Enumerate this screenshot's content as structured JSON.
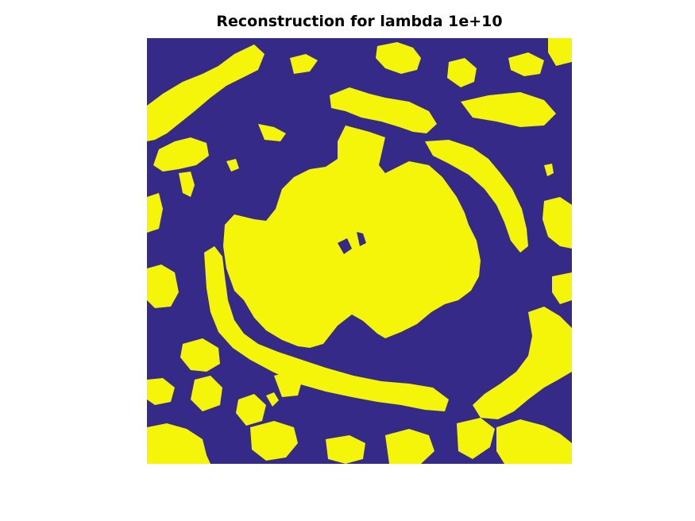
{
  "figure": {
    "title": "Reconstruction for lambda 1e+10"
  },
  "image": {
    "kind": "binary segmentation map",
    "colors": {
      "background": "#352a87",
      "foreground": "#f5f50a"
    }
  }
}
